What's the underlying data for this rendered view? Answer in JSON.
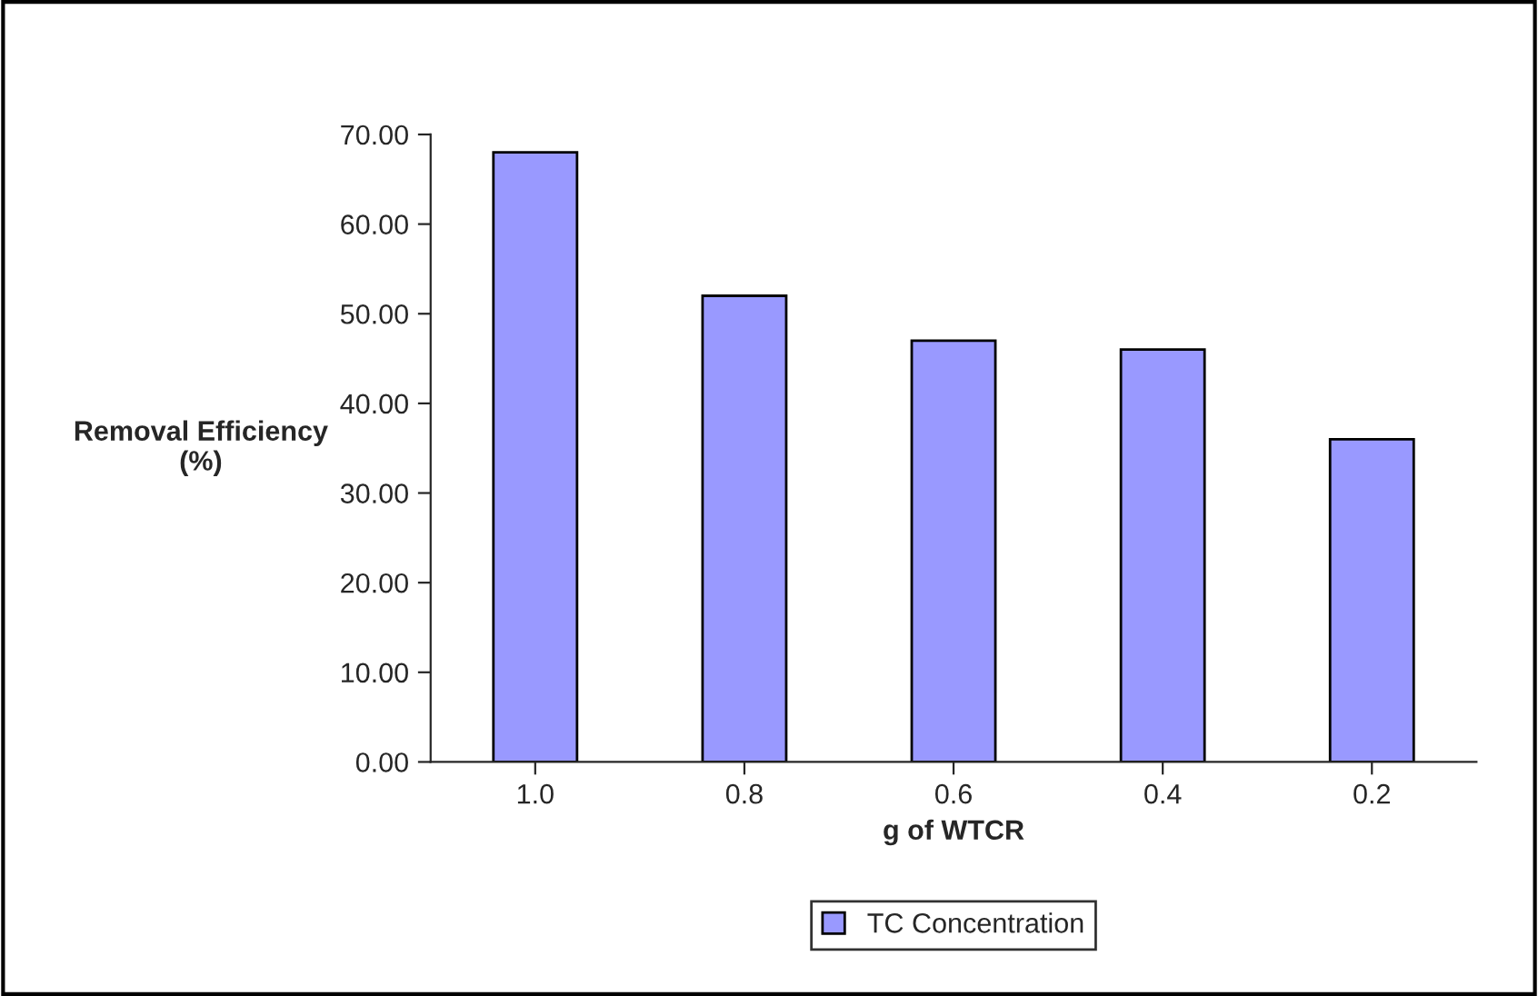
{
  "chart_data": {
    "type": "bar",
    "xlabel": "g of WTCR",
    "ylabel": "Removal Efficiency\n(%)",
    "categories": [
      "1.0",
      "0.8",
      "0.6",
      "0.4",
      "0.2"
    ],
    "series": [
      {
        "name": "TC Concentration",
        "color": "#9999ff",
        "values": [
          68,
          52,
          47,
          46,
          36
        ]
      }
    ],
    "ylim": [
      0,
      70
    ],
    "yticks": [
      {
        "value": 0,
        "label": "0.00"
      },
      {
        "value": 10,
        "label": "10.00"
      },
      {
        "value": 20,
        "label": "20.00"
      },
      {
        "value": 30,
        "label": "30.00"
      },
      {
        "value": 40,
        "label": "40.00"
      },
      {
        "value": 50,
        "label": "50.00"
      },
      {
        "value": 60,
        "label": "60.00"
      },
      {
        "value": 70,
        "label": "70.00"
      }
    ],
    "grid": false,
    "legend": "bottom"
  }
}
